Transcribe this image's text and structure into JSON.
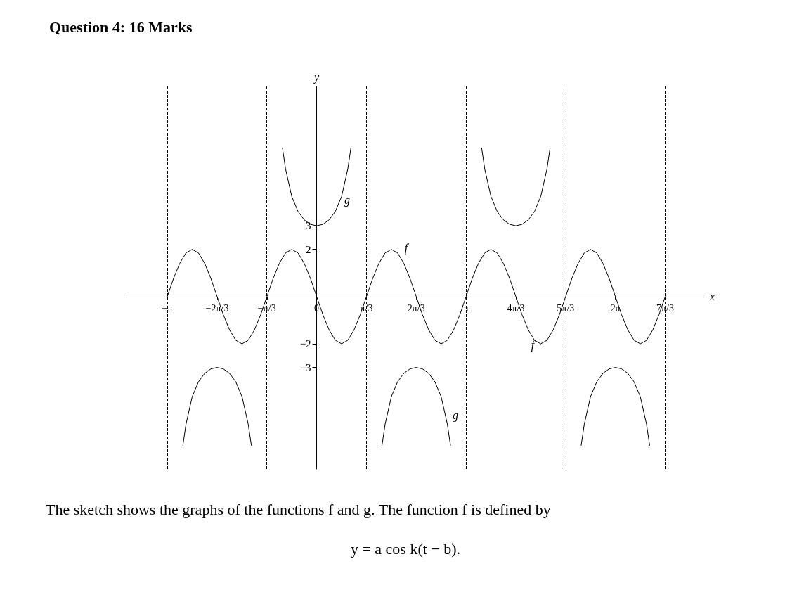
{
  "chart_data": {
    "type": "line",
    "title": "Question 4: 16 Marks",
    "xlabel": "x",
    "ylabel": "y",
    "x": [
      -3.142,
      -3.011,
      -2.88,
      -2.749,
      -2.618,
      -2.487,
      -2.356,
      -2.225,
      -2.094,
      -1.963,
      -1.833,
      -1.702,
      -1.571,
      -1.44,
      -1.309,
      -1.178,
      -1.047,
      -0.916,
      -0.785,
      -0.654,
      -0.524,
      -0.393,
      -0.262,
      -0.131,
      0,
      0.131,
      0.262,
      0.393,
      0.524,
      0.654,
      0.785,
      0.916,
      1.047,
      1.178,
      1.309,
      1.44,
      1.571,
      1.702,
      1.833,
      1.963,
      2.094,
      2.225,
      2.356,
      2.487,
      2.618,
      2.749,
      2.88,
      3.011,
      3.142,
      3.272,
      3.403,
      3.534,
      3.665,
      3.796,
      3.927,
      4.058,
      4.189,
      4.32,
      4.451,
      4.581,
      4.712,
      4.843,
      4.974,
      5.105,
      5.236,
      5.367,
      5.498,
      5.629,
      5.76,
      5.89,
      6.021,
      6.152,
      6.283,
      6.414,
      6.545,
      6.676,
      6.807,
      6.938,
      7.069,
      7.199,
      7.33
    ],
    "series": [
      {
        "color": "#000000",
        "values": [
          0,
          0.77,
          1.41,
          1.85,
          2,
          1.85,
          1.41,
          0.77,
          0,
          -0.77,
          -1.41,
          -1.85,
          -2,
          -1.85,
          -1.41,
          -0.77,
          0,
          0.77,
          1.41,
          1.85,
          2,
          1.85,
          1.41,
          0.77,
          0,
          -0.77,
          -1.41,
          -1.85,
          -2,
          -1.85,
          -1.41,
          -0.77,
          0,
          0.77,
          1.41,
          1.85,
          2,
          1.85,
          1.41,
          0.77,
          0,
          -0.77,
          -1.41,
          -1.85,
          -2,
          -1.85,
          -1.41,
          -0.77,
          0,
          0.77,
          1.41,
          1.85,
          2,
          1.85,
          1.41,
          0.77,
          0,
          -0.77,
          -1.41,
          -1.85,
          -2,
          -1.85,
          -1.41,
          -0.77,
          0,
          0.77,
          1.41,
          1.85,
          2,
          1.85,
          1.41,
          0.77,
          0,
          -0.77,
          -1.41,
          -1.85,
          -2,
          -1.85,
          -1.41,
          -0.77,
          0
        ]
      },
      {
        "color": "#000000",
        "x": [
          -2.814,
          -2.748,
          -2.618,
          -2.487,
          -2.356,
          -2.225,
          -2.094,
          -1.963,
          -1.832,
          -1.701,
          -1.57,
          -1.44,
          -1.374,
          -1.047,
          -0.72,
          -0.654,
          -0.524,
          -0.393,
          -0.262,
          -0.131,
          0,
          0.131,
          0.262,
          0.393,
          0.524,
          0.654,
          0.72,
          1.047,
          1.374,
          1.44,
          1.57,
          1.701,
          1.832,
          1.963,
          2.094,
          2.225,
          2.356,
          2.487,
          2.618,
          2.748,
          2.814,
          3.142,
          3.469,
          3.535,
          3.665,
          3.796,
          3.927,
          4.058,
          4.189,
          4.32,
          4.451,
          4.582,
          4.713,
          4.843,
          4.909,
          5.236,
          5.563,
          5.629,
          5.759,
          5.89,
          6.021,
          6.152,
          6.283,
          6.414,
          6.545,
          6.676,
          6.807,
          6.937,
          7.003
        ],
        "values": [
          -6.3,
          -5.4,
          -4.24,
          -3.61,
          -3.25,
          -3.06,
          -3,
          -3.06,
          -3.25,
          -3.61,
          -4.24,
          -5.4,
          -6.3,
          null,
          6.3,
          5.4,
          4.24,
          3.61,
          3.25,
          3.06,
          3,
          3.06,
          3.25,
          3.61,
          4.24,
          5.4,
          6.3,
          null,
          -6.3,
          -5.4,
          -4.24,
          -3.61,
          -3.25,
          -3.06,
          -3,
          -3.06,
          -3.25,
          -3.61,
          -4.24,
          -5.4,
          -6.3,
          null,
          6.3,
          5.4,
          4.24,
          3.61,
          3.25,
          3.06,
          3,
          3.06,
          3.25,
          3.61,
          4.24,
          5.4,
          6.3,
          null,
          -6.3,
          -5.4,
          -4.24,
          -3.61,
          -3.25,
          -3.06,
          -3,
          -3.06,
          -3.25,
          -3.61,
          -4.24,
          -5.4,
          -6.3
        ]
      }
    ],
    "xlim": [
      -4,
      8.15
    ],
    "ylim": [
      -7.3,
      8.9
    ],
    "xticks": [
      {
        "value": -3.142,
        "label": "−π"
      },
      {
        "value": -2.094,
        "label": "−2π/3"
      },
      {
        "value": -1.047,
        "label": "−π/3"
      },
      0,
      {
        "value": 1.047,
        "label": "π/3"
      },
      {
        "value": 2.094,
        "label": "2π/3"
      },
      {
        "value": 3.142,
        "label": "π"
      },
      {
        "value": 4.189,
        "label": "4π/3"
      },
      {
        "value": 5.236,
        "label": "5π/3"
      },
      {
        "value": 6.283,
        "label": "2π"
      },
      {
        "value": 7.33,
        "label": "7π/3"
      }
    ],
    "yticks": [
      -3,
      -2,
      2,
      3
    ],
    "ref_lines": [
      {
        "axis": "x",
        "value": -3.142,
        "color": "#000000",
        "line_style": "dashed"
      },
      {
        "axis": "x",
        "value": -1.047,
        "color": "#000000",
        "line_style": "dashed"
      },
      {
        "axis": "x",
        "value": 1.047,
        "color": "#000000",
        "line_style": "dashed"
      },
      {
        "axis": "x",
        "value": 3.142,
        "color": "#000000",
        "line_style": "dashed"
      },
      {
        "axis": "x",
        "value": 5.236,
        "color": "#000000",
        "line_style": "dashed"
      },
      {
        "axis": "x",
        "value": 7.33,
        "color": "#000000",
        "line_style": "dashed"
      }
    ],
    "annotations": [
      "f",
      "f",
      "g",
      "g",
      "The sketch shows the graphs of the functions f and g. The function f is defined by",
      "y = a cos k(t − b)."
    ],
    "grid": false,
    "marker": "none",
    "line_style": "solid"
  }
}
